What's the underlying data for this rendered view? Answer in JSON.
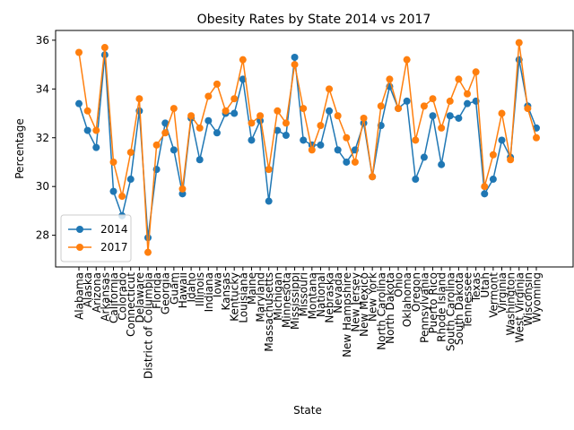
{
  "chart_data": {
    "type": "line",
    "title": "Obesity Rates by State 2014 vs 2017",
    "xlabel": "State",
    "ylabel": "Percentage",
    "ylim": [
      26.7,
      36.4
    ],
    "yticks": [
      28,
      30,
      32,
      34,
      36
    ],
    "grid": false,
    "legend_position": "lower left",
    "categories": [
      "Alabama",
      "Alaska",
      "Arizona",
      "Arkansas",
      "California",
      "Colorado",
      "Connecticut",
      "Delaware",
      "District of Columbia",
      "Florida",
      "Georgia",
      "Guam",
      "Hawaii",
      "Idaho",
      "Illinois",
      "Indiana",
      "Iowa",
      "Kansas",
      "Kentucky",
      "Louisiana",
      "Maine",
      "Maryland",
      "Massachusetts",
      "Michigan",
      "Minnesota",
      "Mississippi",
      "Missouri",
      "Montana",
      "National",
      "Nebraska",
      "Nevada",
      "New Hampshire",
      "New Jersey",
      "New Mexico",
      "New York",
      "North Carolina",
      "North Dakota",
      "Ohio",
      "Oklahoma",
      "Oregon",
      "Pennsylvania",
      "Puerto Rico",
      "Rhode Island",
      "South Carolina",
      "South Dakota",
      "Tennessee",
      "Texas",
      "Utah",
      "Vermont",
      "Virginia",
      "Washington",
      "West Virginia",
      "Wisconsin",
      "Wyoming"
    ],
    "series": [
      {
        "name": "2014",
        "color": "#1f77b4",
        "values": [
          33.4,
          32.3,
          31.6,
          35.4,
          29.8,
          28.8,
          30.3,
          33.1,
          27.9,
          30.7,
          32.6,
          31.5,
          29.7,
          32.8,
          31.1,
          32.7,
          32.2,
          33.0,
          33.0,
          34.4,
          31.9,
          32.7,
          29.4,
          32.3,
          32.1,
          35.3,
          31.9,
          31.7,
          31.7,
          33.1,
          31.5,
          31.0,
          31.5,
          32.6,
          30.4,
          32.5,
          34.1,
          33.2,
          33.5,
          30.3,
          31.2,
          32.9,
          30.9,
          32.9,
          32.8,
          33.4,
          33.5,
          29.7,
          30.3,
          31.9,
          31.2,
          35.2,
          33.3,
          32.4
        ]
      },
      {
        "name": "2017",
        "color": "#ff7f0e",
        "values": [
          35.5,
          33.1,
          32.3,
          35.7,
          31.0,
          29.6,
          31.4,
          33.6,
          27.3,
          31.7,
          32.2,
          33.2,
          29.9,
          32.9,
          32.4,
          33.7,
          34.2,
          33.1,
          33.6,
          35.2,
          32.6,
          32.9,
          30.7,
          33.1,
          32.6,
          35.0,
          33.2,
          31.5,
          32.5,
          34.0,
          32.9,
          32.0,
          31.0,
          32.8,
          30.4,
          33.3,
          34.4,
          33.2,
          35.2,
          31.9,
          33.3,
          33.6,
          32.4,
          33.5,
          34.4,
          33.8,
          34.7,
          30.0,
          31.3,
          33.0,
          31.1,
          35.9,
          33.2,
          32.0
        ]
      }
    ]
  }
}
